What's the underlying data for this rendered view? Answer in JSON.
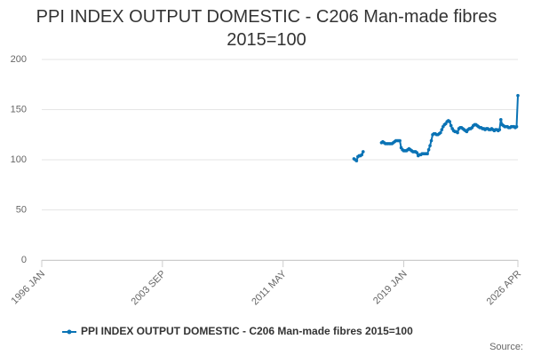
{
  "chart_data": {
    "type": "line",
    "title": "PPI INDEX OUTPUT DOMESTIC - C206 Man-made fibres 2015=100",
    "source": "Source:",
    "x": [
      "2015 NOV",
      "2015 DEC",
      "2016 JAN",
      "2016 FEB",
      "2016 MAR",
      "2016 APR",
      "2016 MAY",
      "2016 JUN",
      "2017 JAN",
      "2017 AUG",
      "2017 SEP",
      "2017 OCT",
      "2017 NOV",
      "2017 DEC",
      "2018 JAN",
      "2018 FEB",
      "2018 MAR",
      "2018 APR",
      "2018 MAY",
      "2018 JUN",
      "2018 JUL",
      "2018 AUG",
      "2018 SEP",
      "2018 OCT",
      "2018 NOV",
      "2018 DEC",
      "2019 JAN",
      "2019 FEB",
      "2019 MAR",
      "2019 APR",
      "2019 MAY",
      "2019 JUN",
      "2019 JUL",
      "2019 AUG",
      "2019 SEP",
      "2019 OCT",
      "2019 NOV",
      "2019 DEC",
      "2020 JAN",
      "2020 FEB",
      "2020 MAR",
      "2020 APR",
      "2020 MAY",
      "2020 JUN",
      "2020 JUL",
      "2020 AUG",
      "2020 SEP",
      "2020 OCT",
      "2020 NOV",
      "2020 DEC",
      "2021 JAN",
      "2021 FEB",
      "2021 MAR",
      "2021 APR",
      "2021 MAY",
      "2021 JUN",
      "2021 JUL",
      "2021 AUG",
      "2021 SEP",
      "2021 OCT",
      "2021 NOV",
      "2021 DEC",
      "2022 JAN",
      "2022 FEB",
      "2022 MAR",
      "2022 APR",
      "2022 MAY",
      "2022 JUN",
      "2022 JUL",
      "2022 AUG",
      "2022 SEP",
      "2022 OCT",
      "2022 NOV",
      "2022 DEC",
      "2023 JAN",
      "2023 FEB",
      "2023 MAR",
      "2023 APR",
      "2023 MAY",
      "2023 JUN",
      "2023 JUL",
      "2023 AUG",
      "2023 SEP",
      "2023 OCT",
      "2023 NOV",
      "2023 DEC",
      "2024 JAN",
      "2024 FEB",
      "2024 MAR",
      "2024 APR",
      "2024 MAY",
      "2024 JUN",
      "2024 JUL",
      "2024 AUG",
      "2024 SEP",
      "2024 OCT",
      "2024 NOV",
      "2024 DEC",
      "2025 JAN",
      "2025 FEB",
      "2025 MAR",
      "2025 APR",
      "2025 MAY",
      "2025 JUN",
      "2025 JUL",
      "2025 AUG",
      "2025 SEP",
      "2025 OCT",
      "2025 NOV",
      "2025 DEC",
      "2026 JAN",
      "2026 FEB",
      "2026 MAR",
      "2026 APR"
    ],
    "series": [
      {
        "name": "PPI INDEX OUTPUT DOMESTIC - C206 Man-made fibres 2015=100",
        "color": "#0a73b5",
        "values": [
          101,
          100,
          99,
          103,
          104,
          104,
          105,
          108,
          null,
          117,
          118,
          117,
          116,
          116,
          116,
          116,
          116,
          116,
          117,
          118,
          119,
          119,
          119,
          119,
          112,
          110,
          109,
          109,
          109,
          110,
          111,
          110,
          109,
          108,
          108,
          108,
          107,
          104,
          105,
          105,
          106,
          106,
          106,
          106,
          106,
          110,
          114,
          119,
          125,
          126,
          126,
          125,
          125,
          126,
          127,
          130,
          133,
          135,
          136,
          138,
          139,
          138,
          134,
          131,
          129,
          128,
          128,
          127,
          131,
          132,
          132,
          131,
          130,
          129,
          128,
          130,
          131,
          131,
          132,
          134,
          135,
          135,
          134,
          133,
          132,
          132,
          131,
          131,
          130,
          131,
          131,
          130,
          130,
          131,
          130,
          129,
          130,
          130,
          129,
          130,
          140,
          135,
          134,
          133,
          133,
          133,
          132,
          132,
          133,
          133,
          133,
          132,
          133,
          164
        ]
      }
    ],
    "xlim": [
      "1996 JAN",
      "2026 APR"
    ],
    "xticks": [
      "1996 JAN",
      "2003 SEP",
      "2011 MAY",
      "2019 JAN",
      "2026 APR"
    ],
    "ylim": [
      0,
      200
    ],
    "yticks": [
      0,
      50,
      100,
      150,
      200
    ],
    "grid": true
  }
}
